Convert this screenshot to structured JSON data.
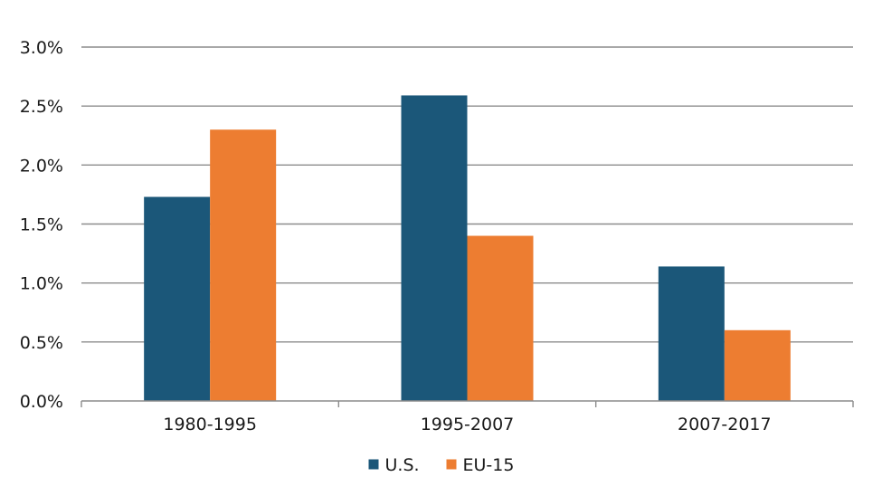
{
  "chart_data": {
    "type": "bar",
    "title": "",
    "xlabel": "",
    "ylabel": "",
    "categories": [
      "1980-1995",
      "1995-2007",
      "2007-2017"
    ],
    "series": [
      {
        "name": "U.S.",
        "values": [
          1.73,
          2.59,
          1.14
        ],
        "color": "#1b5779"
      },
      {
        "name": "EU-15",
        "values": [
          2.3,
          1.4,
          0.6
        ],
        "color": "#ed7d31"
      }
    ],
    "ylim": [
      0,
      3.0
    ],
    "yticks": [
      0,
      0.5,
      1.0,
      1.5,
      2.0,
      2.5,
      3.0
    ],
    "ytick_labels": [
      "0.0%",
      "0.5%",
      "1.0%",
      "1.5%",
      "2.0%",
      "2.5%",
      "3.0%"
    ],
    "grid": true,
    "legend_position": "bottom-center"
  }
}
